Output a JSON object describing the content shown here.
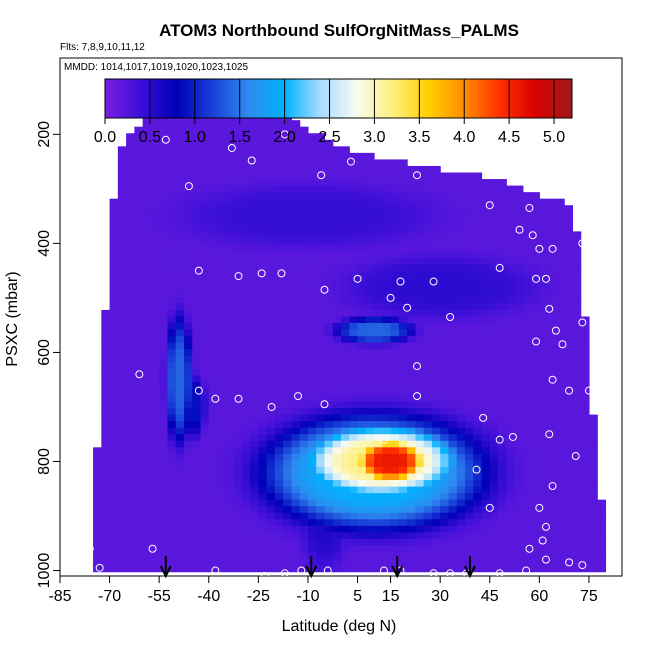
{
  "chart_data": {
    "type": "heatmap",
    "title": "ATOM3 Northbound SulfOrgNitMass_PALMS",
    "flights_label": "Flts: 7,8,9,10,11,12",
    "dates_label": "MMDD: 1014,1017,1019,1020,1023,1025",
    "xlabel": "Latitude (deg N)",
    "ylabel": "PSXC (mbar)",
    "xlim": [
      -85,
      85
    ],
    "ylim": [
      1010,
      60
    ],
    "x_ticks": [
      -85,
      -70,
      -55,
      -40,
      -25,
      -10,
      5,
      15,
      30,
      45,
      60,
      75
    ],
    "y_ticks": [
      200,
      400,
      600,
      800,
      1000
    ],
    "colorbar": {
      "min": 0.0,
      "max": 5.2,
      "ticks": [
        "0.0",
        "0.5",
        "1.0",
        "1.5",
        "2.0",
        "2.5",
        "3.0",
        "3.5",
        "4.0",
        "4.5",
        "5.0"
      ],
      "tick_values": [
        0,
        0.5,
        1,
        1.5,
        2,
        2.5,
        3,
        3.5,
        4,
        4.5,
        5
      ],
      "colors": [
        "#7a1fe0",
        "#3b0fd8",
        "#0000b8",
        "#1a3fd8",
        "#2e8cf0",
        "#00b2ff",
        "#a8dcff",
        "#f8faf0",
        "#fff080",
        "#ffd000",
        "#ff8c00",
        "#ff3000",
        "#d80000",
        "#a01818"
      ]
    },
    "background_value": 0.2,
    "hotspots": [
      {
        "lat": 15,
        "p": 800,
        "value": 4.6,
        "dlat": 12,
        "dp": 45
      },
      {
        "lat": 12,
        "p": 800,
        "value": 3.2,
        "dlat": 25,
        "dp": 70
      },
      {
        "lat": 10,
        "p": 820,
        "value": 2.0,
        "dlat": 35,
        "dp": 110
      },
      {
        "lat": 10,
        "p": 560,
        "value": 1.4,
        "dlat": 12,
        "dp": 25
      },
      {
        "lat": -49,
        "p": 650,
        "value": 1.4,
        "dlat": 4,
        "dp": 120
      },
      {
        "lat": -45,
        "p": 700,
        "value": 0.9,
        "dlat": 4,
        "dp": 60
      },
      {
        "lat": -5,
        "p": 880,
        "value": 0.6,
        "dlat": 8,
        "dp": 120
      },
      {
        "lat": 30,
        "p": 480,
        "value": 0.5,
        "dlat": 30,
        "dp": 60
      },
      {
        "lat": -10,
        "p": 350,
        "value": 0.45,
        "dlat": 40,
        "dp": 60
      },
      {
        "lat": 45,
        "p": 820,
        "value": 0.5,
        "dlat": 6,
        "dp": 80
      }
    ],
    "coverage": [
      {
        "p": 170,
        "lat_min": -60,
        "lat_max": -16
      },
      {
        "p": 230,
        "lat_min": -67,
        "lat_max": 2
      },
      {
        "p": 280,
        "lat_min": -68,
        "lat_max": 45
      },
      {
        "p": 330,
        "lat_min": -69,
        "lat_max": 70
      },
      {
        "p": 400,
        "lat_min": -70,
        "lat_max": 72
      },
      {
        "p": 500,
        "lat_min": -71,
        "lat_max": 73
      },
      {
        "p": 600,
        "lat_min": -72,
        "lat_max": 75
      },
      {
        "p": 700,
        "lat_min": -73,
        "lat_max": 76
      },
      {
        "p": 800,
        "lat_min": -74,
        "lat_max": 78
      },
      {
        "p": 900,
        "lat_min": -74,
        "lat_max": 79
      },
      {
        "p": 1005,
        "lat_min": -75,
        "lat_max": 80
      }
    ],
    "sample_points": [
      [
        -53,
        210
      ],
      [
        -33,
        225
      ],
      [
        -17,
        200
      ],
      [
        -46,
        295
      ],
      [
        -27,
        248
      ],
      [
        -6,
        275
      ],
      [
        3,
        250
      ],
      [
        23,
        275
      ],
      [
        -43,
        450
      ],
      [
        -31,
        460
      ],
      [
        -24,
        455
      ],
      [
        -18,
        455
      ],
      [
        -5,
        485
      ],
      [
        5,
        465
      ],
      [
        15,
        500
      ],
      [
        18,
        470
      ],
      [
        28,
        470
      ],
      [
        33,
        535
      ],
      [
        20,
        518
      ],
      [
        45,
        330
      ],
      [
        57,
        335
      ],
      [
        63,
        305
      ],
      [
        54,
        375
      ],
      [
        58,
        385
      ],
      [
        60,
        410
      ],
      [
        64,
        410
      ],
      [
        73,
        400
      ],
      [
        48,
        445
      ],
      [
        59,
        465
      ],
      [
        62,
        465
      ],
      [
        -74,
        620
      ],
      [
        -61,
        640
      ],
      [
        -38,
        685
      ],
      [
        -43,
        670
      ],
      [
        -31,
        685
      ],
      [
        -21,
        700
      ],
      [
        -13,
        680
      ],
      [
        -5,
        695
      ],
      [
        23,
        625
      ],
      [
        23,
        680
      ],
      [
        43,
        720
      ],
      [
        63,
        520
      ],
      [
        65,
        560
      ],
      [
        67,
        585
      ],
      [
        73,
        545
      ],
      [
        59,
        580
      ],
      [
        64,
        650
      ],
      [
        75,
        670
      ],
      [
        69,
        670
      ],
      [
        63,
        750
      ],
      [
        52,
        755
      ],
      [
        48,
        760
      ],
      [
        13,
        760
      ],
      [
        71,
        790
      ],
      [
        41,
        815
      ],
      [
        64,
        845
      ],
      [
        60,
        885
      ],
      [
        45,
        885
      ],
      [
        62,
        920
      ],
      [
        61,
        945
      ],
      [
        57,
        960
      ],
      [
        -76,
        960
      ],
      [
        -57,
        960
      ],
      [
        -73,
        995
      ],
      [
        -38,
        1000
      ],
      [
        -23,
        1010
      ],
      [
        -17,
        1005
      ],
      [
        -12,
        1000
      ],
      [
        -4,
        1000
      ],
      [
        13,
        1000
      ],
      [
        18,
        1000
      ],
      [
        28,
        1005
      ],
      [
        33,
        1005
      ],
      [
        38,
        1005
      ],
      [
        48,
        1005
      ],
      [
        56,
        1000
      ],
      [
        62,
        980
      ],
      [
        69,
        985
      ],
      [
        73,
        990
      ]
    ],
    "arrows": [
      -53,
      -9,
      17,
      39
    ]
  }
}
